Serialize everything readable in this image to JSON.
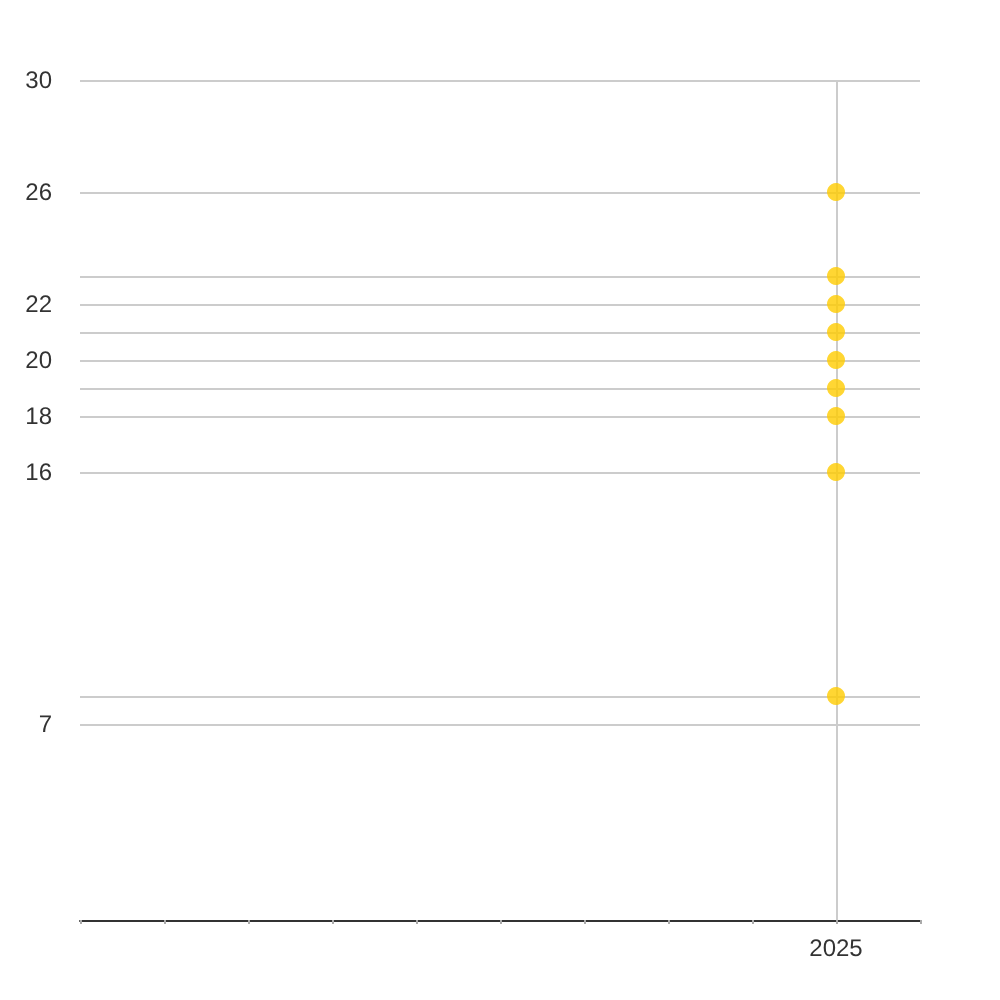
{
  "chart_data": {
    "type": "scatter",
    "categories": [
      null,
      null,
      null,
      null,
      null,
      null,
      null,
      null,
      null,
      "2025",
      null
    ],
    "series": [
      {
        "color": "#ffcc00",
        "values": [
          null,
          null,
          null,
          null,
          null,
          null,
          null,
          null,
          null,
          26,
          null
        ]
      },
      {
        "color": "#ffcc00",
        "values": [
          null,
          null,
          null,
          null,
          null,
          null,
          null,
          null,
          null,
          23,
          null
        ]
      },
      {
        "color": "#ffcc00",
        "values": [
          null,
          null,
          null,
          null,
          null,
          null,
          null,
          null,
          null,
          22,
          null
        ]
      },
      {
        "color": "#ffcc00",
        "values": [
          null,
          null,
          null,
          null,
          null,
          null,
          null,
          null,
          null,
          21,
          null
        ]
      },
      {
        "color": "#ffcc00",
        "values": [
          null,
          null,
          null,
          null,
          null,
          null,
          null,
          null,
          null,
          20,
          null
        ]
      },
      {
        "color": "#ffcc00",
        "values": [
          null,
          null,
          null,
          null,
          null,
          null,
          null,
          null,
          null,
          19,
          null
        ]
      },
      {
        "color": "#ffcc00",
        "values": [
          null,
          null,
          null,
          null,
          null,
          null,
          null,
          null,
          null,
          18,
          null
        ]
      },
      {
        "color": "#ffcc00",
        "values": [
          null,
          null,
          null,
          null,
          null,
          null,
          null,
          null,
          null,
          16,
          null
        ]
      },
      {
        "color": "#ffcc00",
        "values": [
          null,
          null,
          null,
          null,
          null,
          null,
          null,
          null,
          null,
          8,
          null
        ]
      }
    ],
    "ylim": [
      0,
      30
    ],
    "yticks": [
      {
        "value": 0,
        "label": null
      },
      7,
      {
        "value": 8,
        "label": null
      },
      16,
      18,
      {
        "value": 19,
        "label": null
      },
      20,
      {
        "value": 21,
        "label": null
      },
      22,
      {
        "value": 23,
        "label": null
      },
      26,
      30
    ],
    "grid": true,
    "marker": "circle"
  }
}
